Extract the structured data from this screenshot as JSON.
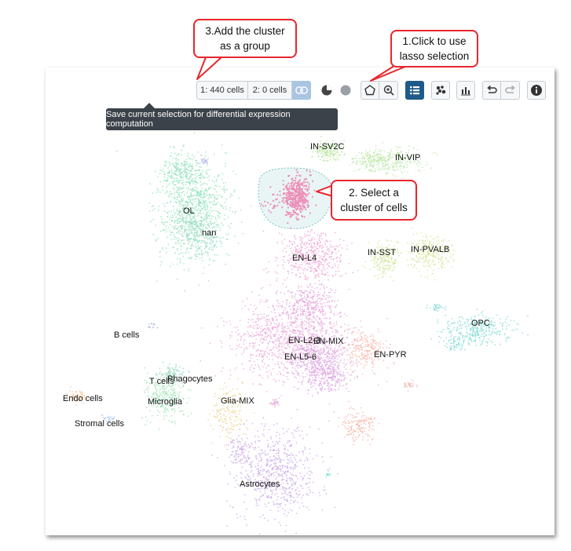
{
  "toolbar": {
    "group1_label": "1: 440 cells",
    "group2_label": "2: 0 cells",
    "tooltip": "Save current selection for differential expression computation"
  },
  "annotations": {
    "add_group_line1": "3.Add the cluster",
    "add_group_line2": "as a group",
    "lasso_line1": "1.Click to use",
    "lasso_line2": "lasso selection",
    "select_line1": "2. Select a",
    "select_line2": "cluster of cells"
  },
  "icons": {
    "split": "split-selection-icon",
    "pie": "pie-chart-icon",
    "circle": "point-color-icon",
    "lasso": "lasso-icon",
    "zoom": "zoom-icon",
    "list": "list-icon",
    "scatter": "scatter-icon",
    "bar": "bar-chart-icon",
    "undo": "undo-icon",
    "redo": "redo-icon",
    "info": "info-icon"
  },
  "colors": {
    "accent": "#1f5b8a",
    "callout_border": "#e8262d",
    "tooltip_bg": "#3b4249"
  },
  "clusters": [
    {
      "name": "IN-SV2C",
      "color": "#b6e59a"
    },
    {
      "name": "IN-VIP",
      "color": "#b8e7a6"
    },
    {
      "name": "OL",
      "color": "#8fe2b9"
    },
    {
      "name": "nan",
      "color": "#a6dccc"
    },
    {
      "name": "IN-SST",
      "color": "#cfe695"
    },
    {
      "name": "IN-PVALB",
      "color": "#d5e59b"
    },
    {
      "name": "EN-L4",
      "color": "#ec9fd0"
    },
    {
      "name": "OPC",
      "color": "#7fd9d4"
    },
    {
      "name": "B cells",
      "color": "#b4b7e8"
    },
    {
      "name": "EN-L2-3",
      "color": "#e8a8d9"
    },
    {
      "name": "EN-MIX",
      "color": "#e4a3dc"
    },
    {
      "name": "EN-L5-6",
      "color": "#dba4e0"
    },
    {
      "name": "EN-PYR",
      "color": "#f4b6a8"
    },
    {
      "name": "T cells",
      "color": "#9ad8c0"
    },
    {
      "name": "Phagocytes",
      "color": "#9ee0b8"
    },
    {
      "name": "Endo cells",
      "color": "#f2c49a"
    },
    {
      "name": "Microglia",
      "color": "#9be2b3"
    },
    {
      "name": "Glia-MIX",
      "color": "#f0d08c"
    },
    {
      "name": "Stromal cells",
      "color": "#a9c7f0"
    },
    {
      "name": "Astrocytes",
      "color": "#c8a8e6"
    }
  ]
}
